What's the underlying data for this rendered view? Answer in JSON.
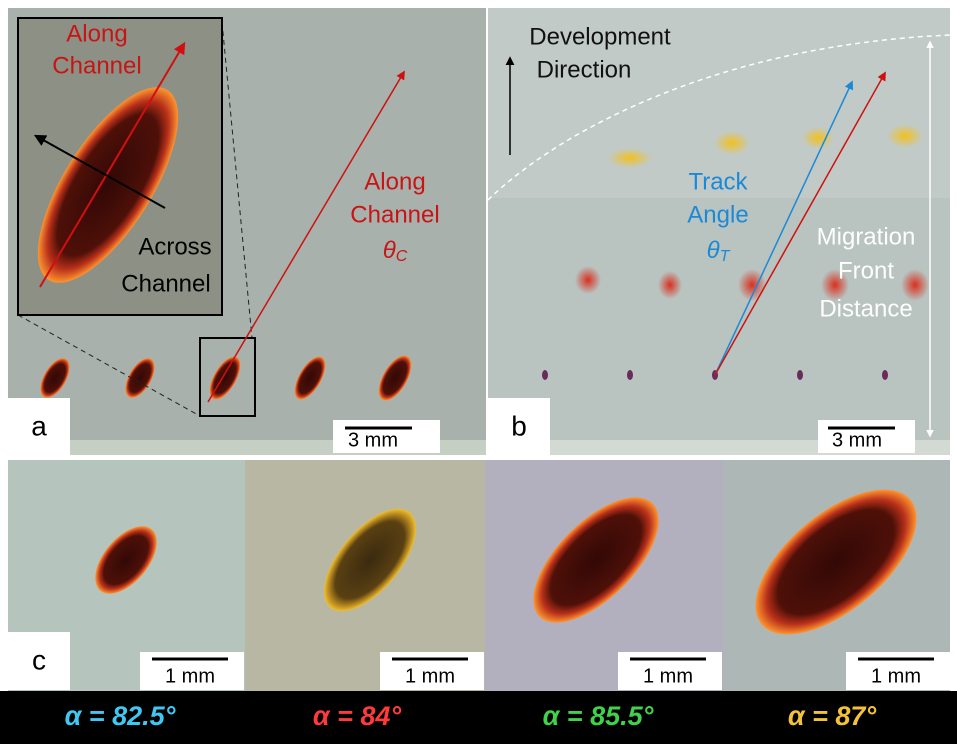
{
  "panel_a": {
    "label": "a",
    "inset_along": {
      "lines": [
        "Along",
        "Channel"
      ]
    },
    "inset_across": {
      "lines": [
        "Across",
        "Channel"
      ]
    },
    "along": {
      "lines": [
        "Along",
        "Channel"
      ]
    },
    "theta": {
      "symbol": "θ",
      "subscript": "C"
    },
    "scale_bar": "3 mm"
  },
  "panel_b": {
    "label": "b",
    "development": {
      "lines": [
        "Development",
        "Direction"
      ]
    },
    "track": {
      "lines": [
        "Track",
        "Angle"
      ]
    },
    "theta": {
      "symbol": "θ",
      "subscript": "T"
    },
    "migration": {
      "lines": [
        "Migration",
        "Front",
        "Distance"
      ]
    },
    "scale_bar": "3 mm"
  },
  "panel_c": {
    "label": "c",
    "scale_bars": [
      "1 mm",
      "1 mm",
      "1 mm",
      "1 mm"
    ]
  },
  "alpha_labels": [
    {
      "text": "α = 82.5°",
      "color": "#41c8f2"
    },
    {
      "text": "α = 84°",
      "color": "#ff3a3a"
    },
    {
      "text": "α = 85.5°",
      "color": "#3fd24a"
    },
    {
      "text": "α = 87°",
      "color": "#f3c23a"
    }
  ]
}
